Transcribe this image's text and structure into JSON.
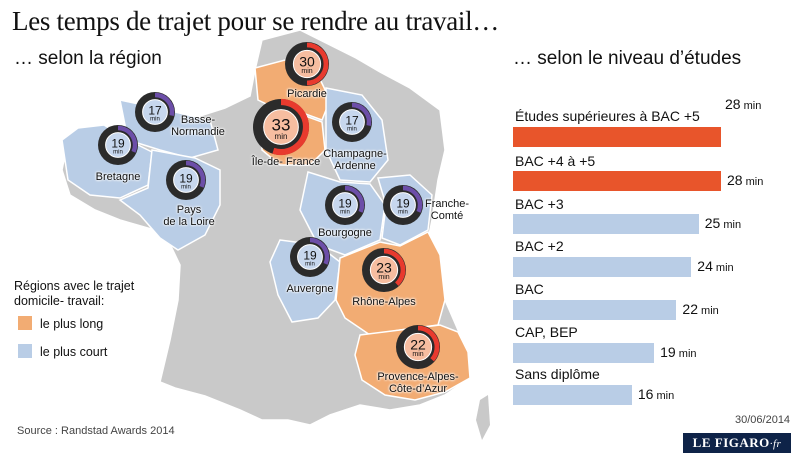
{
  "title": "Les temps de trajet pour se rendre au travail…",
  "subtitle_left": "… selon la région",
  "subtitle_right": "… selon le niveau d’études",
  "legend": {
    "title_line1": "Régions avec le trajet",
    "title_line2": "domicile- travail:",
    "items": [
      {
        "label": "le plus long",
        "color": "#f2ac73"
      },
      {
        "label": "le plus court",
        "color": "#b9cde6"
      }
    ]
  },
  "source": "Source : Randstad Awards 2014",
  "date": "30/06/2014",
  "logo": {
    "main": "LE FIGARO",
    "suffix": "·fr"
  },
  "colors": {
    "map_base": "#c9c9c9",
    "map_border": "#ffffff",
    "long": "#f2ac73",
    "short": "#b9cde6",
    "bar_highlight": "#e8552b",
    "bar_normal": "#b9cde6",
    "ring_long": "#e83a2e",
    "ring_short": "#6c4ea8"
  },
  "regions": [
    {
      "name_lines": [
        "Picardie"
      ],
      "minutes": 30,
      "unit": "min",
      "group": "long"
    },
    {
      "name_lines": [
        "Île-de- France"
      ],
      "minutes": 33,
      "unit": "min",
      "group": "long"
    },
    {
      "name_lines": [
        "Basse-",
        "Normandie"
      ],
      "minutes": 17,
      "unit": "min",
      "group": "short"
    },
    {
      "name_lines": [
        "Champagne-",
        "Ardenne"
      ],
      "minutes": 17,
      "unit": "min",
      "group": "short"
    },
    {
      "name_lines": [
        "Bretagne"
      ],
      "minutes": 19,
      "unit": "min",
      "group": "short"
    },
    {
      "name_lines": [
        "Pays",
        "de la Loire"
      ],
      "minutes": 19,
      "unit": "min",
      "group": "short"
    },
    {
      "name_lines": [
        "Bourgogne"
      ],
      "minutes": 19,
      "unit": "min",
      "group": "short"
    },
    {
      "name_lines": [
        "Franche-",
        "Comté"
      ],
      "minutes": 19,
      "unit": "min",
      "group": "short"
    },
    {
      "name_lines": [
        "Auvergne"
      ],
      "minutes": 19,
      "unit": "min",
      "group": "short"
    },
    {
      "name_lines": [
        "Rhône-Alpes"
      ],
      "minutes": 23,
      "unit": "min",
      "group": "long"
    },
    {
      "name_lines": [
        "Provence-Alpes-",
        "Côte-d’Azur"
      ],
      "minutes": 22,
      "unit": "min",
      "group": "long"
    }
  ],
  "chart_data": {
    "type": "bar",
    "orientation": "horizontal",
    "title": "… selon le niveau d’études",
    "categories": [
      "Études supérieures à BAC +5",
      "BAC +4 à +5",
      "BAC +3",
      "BAC +2",
      "BAC",
      "CAP, BEP",
      "Sans diplôme"
    ],
    "values": [
      28,
      28,
      25,
      24,
      22,
      19,
      16
    ],
    "unit": "min",
    "highlighted": [
      true,
      true,
      false,
      false,
      false,
      false,
      false
    ]
  }
}
